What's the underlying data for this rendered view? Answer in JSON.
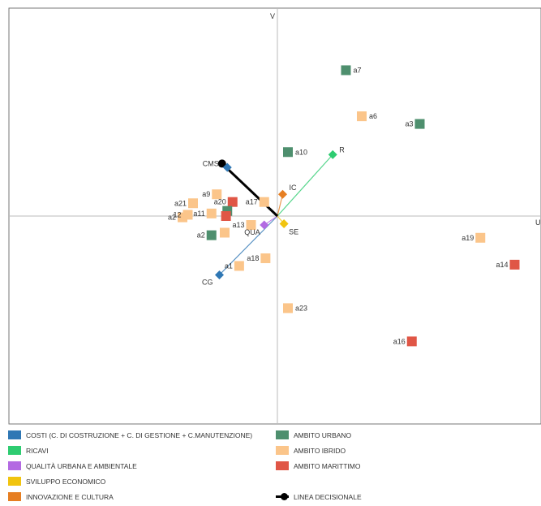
{
  "chart_data": {
    "type": "scatter",
    "title": "",
    "axis_labels": {
      "x": "U",
      "y": "V"
    },
    "xlim": [
      -10,
      10
    ],
    "ylim": [
      -8,
      8
    ],
    "grid": false,
    "legend_position": "bottom",
    "colors": {
      "costi": "#2f77b4",
      "ricavi": "#2ecc71",
      "qualita": "#b36ae2",
      "sviluppo": "#f1c40f",
      "innovazione": "#e67e22",
      "urbano": "#4e8f6e",
      "ibrido": "#fbc58a",
      "marittimo": "#e05646",
      "decisional": "#000000"
    },
    "criteria": [
      {
        "label": "CG",
        "x": -2.2,
        "y": -2.3,
        "color_key": "costi"
      },
      {
        "label": "R",
        "x": 2.1,
        "y": 2.4,
        "color_key": "ricavi"
      },
      {
        "label": "QUA",
        "x": -0.5,
        "y": -0.35,
        "color_key": "qualita"
      },
      {
        "label": "SE",
        "x": 0.25,
        "y": -0.3,
        "color_key": "sviluppo"
      },
      {
        "label": "IC",
        "x": 0.2,
        "y": 0.85,
        "color_key": "innovazione"
      },
      {
        "label": "CM",
        "x": -1.9,
        "y": 1.9,
        "color_key": "costi"
      }
    ],
    "decision_line": {
      "label": "CMS",
      "x": -2.1,
      "y": 2.05
    },
    "alternatives": [
      {
        "label": "a7",
        "x": 2.6,
        "y": 5.7,
        "group": "urbano"
      },
      {
        "label": "a6",
        "x": 3.2,
        "y": 3.9,
        "group": "ibrido"
      },
      {
        "label": "a3",
        "x": 5.4,
        "y": 3.6,
        "group": "urbano"
      },
      {
        "label": "a10",
        "x": 0.4,
        "y": 2.5,
        "group": "urbano"
      },
      {
        "label": "a9",
        "x": -2.3,
        "y": 0.85,
        "group": "ibrido"
      },
      {
        "label": "a21",
        "x": -3.2,
        "y": 0.5,
        "group": "ibrido"
      },
      {
        "label": "a20",
        "x": -1.7,
        "y": 0.55,
        "group": "marittimo"
      },
      {
        "label": "a17",
        "x": -0.5,
        "y": 0.55,
        "group": "ibrido"
      },
      {
        "label": "a2",
        "x": -3.6,
        "y": -0.05,
        "group": "ibrido"
      },
      {
        "label": "12",
        "x": -3.4,
        "y": 0.05,
        "group": "ibrido"
      },
      {
        "label": "a11",
        "x": -2.5,
        "y": 0.1,
        "group": "ibrido"
      },
      {
        "label": "",
        "x": -1.9,
        "y": 0.2,
        "group": "urbano"
      },
      {
        "label": "",
        "x": -1.95,
        "y": 0.0,
        "group": "marittimo"
      },
      {
        "label": "a13",
        "x": -1.0,
        "y": -0.35,
        "group": "ibrido"
      },
      {
        "label": "a2",
        "x": -2.5,
        "y": -0.75,
        "group": "urbano"
      },
      {
        "label": "",
        "x": -2.0,
        "y": -0.65,
        "group": "ibrido"
      },
      {
        "label": "a18",
        "x": -0.45,
        "y": -1.65,
        "group": "ibrido"
      },
      {
        "label": "a1",
        "x": -1.45,
        "y": -1.95,
        "group": "ibrido"
      },
      {
        "label": "a19",
        "x": 7.7,
        "y": -0.85,
        "group": "ibrido"
      },
      {
        "label": "a14",
        "x": 9.0,
        "y": -1.9,
        "group": "marittimo"
      },
      {
        "label": "a23",
        "x": 0.4,
        "y": -3.6,
        "group": "ibrido"
      },
      {
        "label": "a16",
        "x": 5.1,
        "y": -4.9,
        "group": "marittimo"
      }
    ],
    "legend": [
      {
        "label": "COSTI (C. DI COSTRUZIONE + C. DI GESTIONE + C.MANUTENZIONE)",
        "color_key": "costi"
      },
      {
        "label": "RICAVI",
        "color_key": "ricavi"
      },
      {
        "label": "QUALITÀ URBANA E AMBIENTALE",
        "color_key": "qualita"
      },
      {
        "label": "SVILUPPO ECONOMICO",
        "color_key": "sviluppo"
      },
      {
        "label": "INNOVAZIONE E CULTURA",
        "color_key": "innovazione"
      },
      {
        "label": "AMBITO URBANO",
        "color_key": "urbano"
      },
      {
        "label": "AMBITO IBRIDO",
        "color_key": "ibrido"
      },
      {
        "label": "AMBITO MARITTIMO",
        "color_key": "marittimo"
      },
      {
        "label": "LINEA DECISIONALE",
        "color_key": "decisional"
      }
    ]
  }
}
